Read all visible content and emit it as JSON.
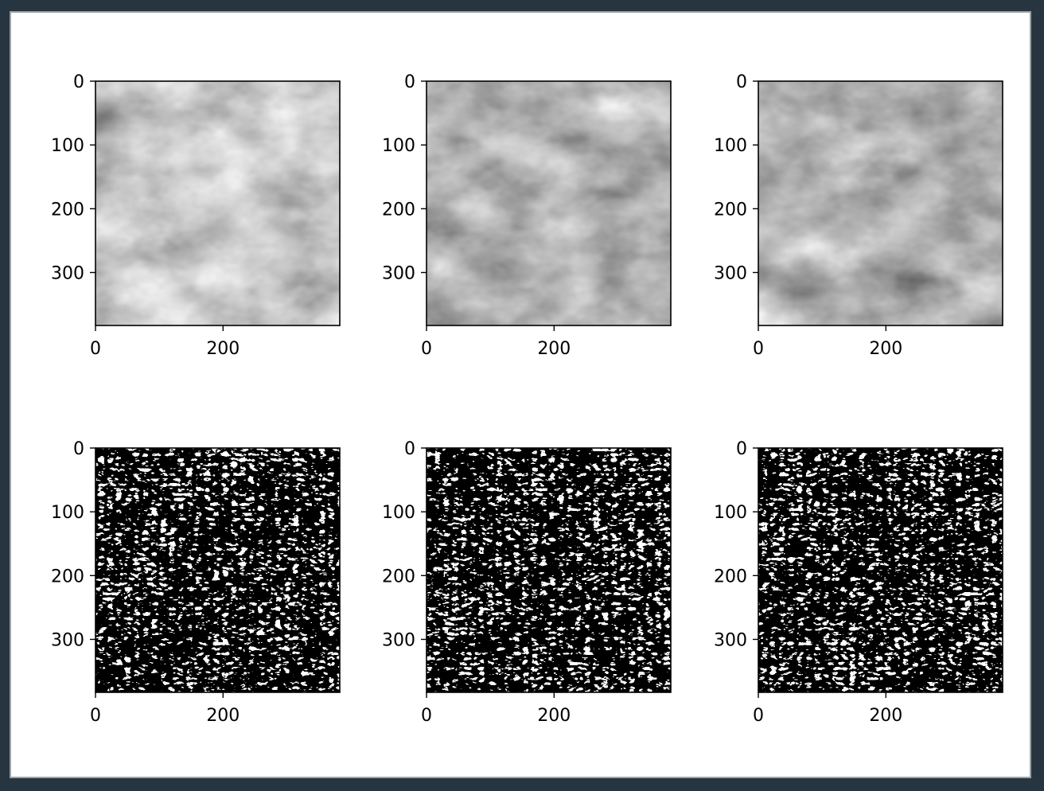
{
  "figure": {
    "background": "#ffffff",
    "frame_border": "#9aa3a8",
    "page_background": "#263540"
  },
  "chart_data": [
    {
      "type": "heatmap",
      "content": "grayscale photo (original)",
      "row": 1,
      "col": 1,
      "xlim": [
        0,
        383
      ],
      "ylim": [
        383,
        0
      ],
      "xticks": [
        0,
        200
      ],
      "yticks": [
        0,
        100,
        200,
        300
      ],
      "grid": false,
      "legend": "none"
    },
    {
      "type": "heatmap",
      "content": "grayscale photo (processed)",
      "row": 1,
      "col": 2,
      "xlim": [
        0,
        383
      ],
      "ylim": [
        383,
        0
      ],
      "xticks": [
        0,
        200
      ],
      "yticks": [
        0,
        100,
        200,
        300
      ],
      "grid": false,
      "legend": "none"
    },
    {
      "type": "heatmap",
      "content": "grayscale photo (processed)",
      "row": 1,
      "col": 3,
      "xlim": [
        0,
        383
      ],
      "ylim": [
        383,
        0
      ],
      "xticks": [
        0,
        200
      ],
      "yticks": [
        0,
        100,
        200,
        300
      ],
      "grid": false,
      "legend": "none"
    },
    {
      "type": "heatmap",
      "content": "binary texture map",
      "row": 2,
      "col": 1,
      "xlim": [
        0,
        383
      ],
      "ylim": [
        383,
        0
      ],
      "xticks": [
        0,
        200
      ],
      "yticks": [
        0,
        100,
        200,
        300
      ],
      "grid": false,
      "legend": "none"
    },
    {
      "type": "heatmap",
      "content": "binary texture map",
      "row": 2,
      "col": 2,
      "xlim": [
        0,
        383
      ],
      "ylim": [
        383,
        0
      ],
      "xticks": [
        0,
        200
      ],
      "yticks": [
        0,
        100,
        200,
        300
      ],
      "grid": false,
      "legend": "none"
    },
    {
      "type": "heatmap",
      "content": "binary texture map",
      "row": 2,
      "col": 3,
      "xlim": [
        0,
        383
      ],
      "ylim": [
        383,
        0
      ],
      "xticks": [
        0,
        200
      ],
      "yticks": [
        0,
        100,
        200,
        300
      ],
      "grid": false,
      "legend": "none"
    }
  ]
}
